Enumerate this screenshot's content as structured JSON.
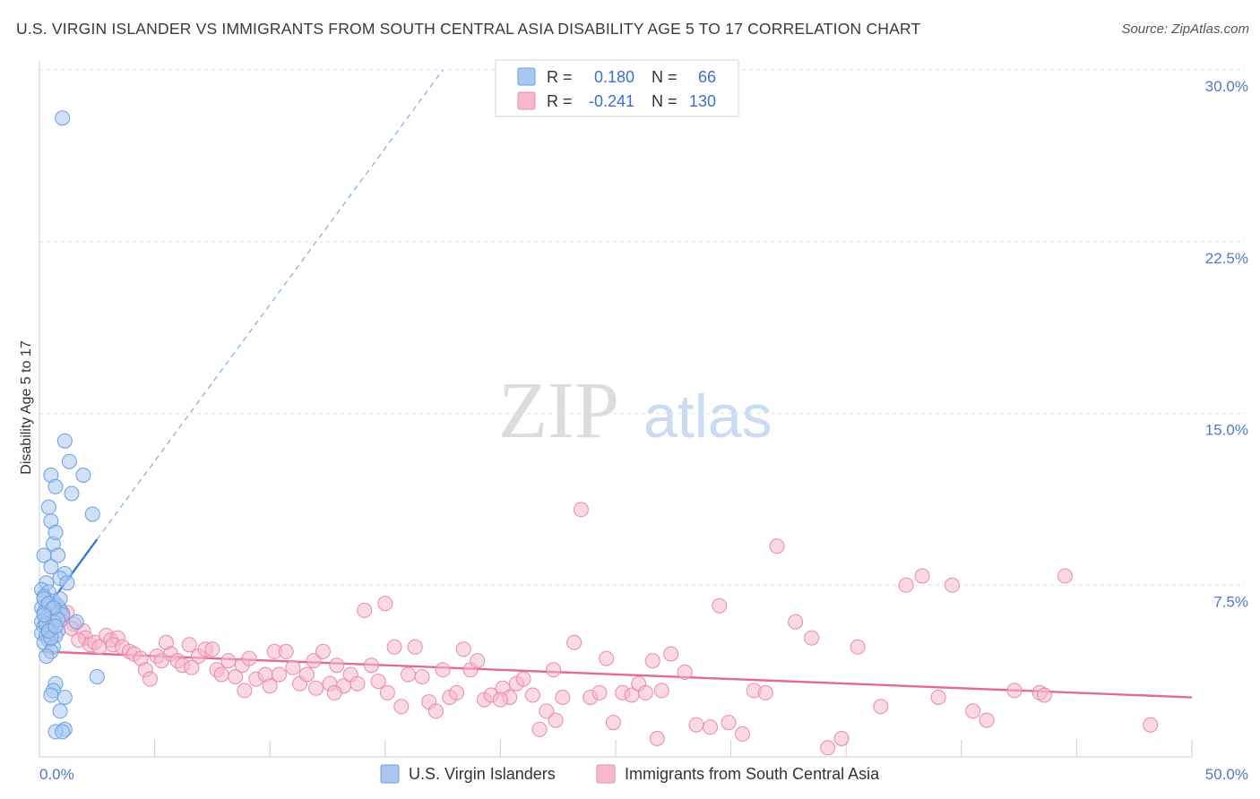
{
  "title": "U.S. VIRGIN ISLANDER VS IMMIGRANTS FROM SOUTH CENTRAL ASIA DISABILITY AGE 5 TO 17 CORRELATION CHART",
  "source": "Source: ZipAtlas.com",
  "watermark": {
    "zip": "ZIP",
    "atlas": "atlas"
  },
  "legend_top": {
    "rows": [
      {
        "r_label": "R =",
        "r_value": "0.180",
        "n_label": "N =",
        "n_value": "66",
        "color": "#a9c8f0",
        "border": "#6a9ee0"
      },
      {
        "r_label": "R =",
        "r_value": "-0.241",
        "n_label": "N =",
        "n_value": "130",
        "color": "#f6b9cc",
        "border": "#e98aa9"
      }
    ]
  },
  "legend_bottom": {
    "items": [
      {
        "label": "U.S. Virgin Islanders",
        "color": "#a9c8f0",
        "border": "#6a9ee0"
      },
      {
        "label": "Immigrants from South Central Asia",
        "color": "#f6b9cc",
        "border": "#e98aa9"
      }
    ]
  },
  "chart_data": {
    "type": "scatter",
    "ylabel": "Disability Age 5 to 17",
    "xlim": [
      0,
      50
    ],
    "ylim": [
      0,
      30
    ],
    "x_tick_labels": [
      "0.0%",
      "50.0%"
    ],
    "y_ticks": [
      7.5,
      15.0,
      22.5,
      30.0
    ],
    "y_tick_labels": [
      "7.5%",
      "15.0%",
      "22.5%",
      "30.0%"
    ],
    "grid": true,
    "series": [
      {
        "name": "U.S. Virgin Islanders",
        "color": "#a9c8f0",
        "stroke": "#6a9ee0",
        "line_color": "#2b6fd6",
        "trend": {
          "x0": 0.1,
          "y0": 6.2,
          "x1": 2.5,
          "y1": 9.5,
          "dash_x1": 17.5,
          "dash_y1": 30.0
        },
        "points": [
          [
            1.0,
            27.9
          ],
          [
            1.1,
            13.8
          ],
          [
            1.3,
            12.9
          ],
          [
            0.5,
            12.3
          ],
          [
            1.9,
            12.3
          ],
          [
            0.7,
            11.8
          ],
          [
            1.4,
            11.5
          ],
          [
            0.4,
            10.9
          ],
          [
            2.3,
            10.6
          ],
          [
            0.5,
            10.3
          ],
          [
            0.6,
            9.3
          ],
          [
            0.7,
            9.8
          ],
          [
            0.2,
            8.8
          ],
          [
            0.8,
            8.8
          ],
          [
            0.5,
            8.3
          ],
          [
            1.1,
            8.0
          ],
          [
            0.9,
            7.8
          ],
          [
            0.3,
            7.6
          ],
          [
            1.2,
            7.6
          ],
          [
            0.1,
            7.3
          ],
          [
            0.4,
            7.2
          ],
          [
            0.2,
            7.0
          ],
          [
            0.6,
            6.8
          ],
          [
            0.3,
            6.6
          ],
          [
            0.8,
            6.6
          ],
          [
            0.1,
            6.5
          ],
          [
            0.5,
            6.4
          ],
          [
            0.9,
            6.4
          ],
          [
            0.2,
            6.3
          ],
          [
            0.7,
            6.2
          ],
          [
            1.0,
            6.2
          ],
          [
            0.3,
            6.1
          ],
          [
            0.4,
            6.0
          ],
          [
            0.1,
            5.9
          ],
          [
            0.6,
            5.9
          ],
          [
            1.6,
            5.9
          ],
          [
            0.2,
            5.7
          ],
          [
            0.5,
            5.6
          ],
          [
            0.8,
            5.5
          ],
          [
            0.1,
            5.4
          ],
          [
            0.3,
            5.3
          ],
          [
            0.7,
            5.3
          ],
          [
            0.4,
            5.1
          ],
          [
            0.2,
            5.0
          ],
          [
            0.6,
            4.8
          ],
          [
            0.5,
            4.6
          ],
          [
            0.3,
            4.4
          ],
          [
            2.5,
            3.5
          ],
          [
            0.7,
            3.2
          ],
          [
            0.6,
            2.9
          ],
          [
            0.5,
            2.7
          ],
          [
            1.1,
            2.6
          ],
          [
            0.9,
            2.0
          ],
          [
            1.1,
            1.2
          ],
          [
            0.7,
            1.1
          ],
          [
            1.0,
            1.1
          ],
          [
            0.2,
            6.9
          ],
          [
            0.4,
            6.7
          ],
          [
            0.9,
            6.9
          ],
          [
            0.3,
            5.8
          ],
          [
            0.5,
            5.2
          ],
          [
            0.8,
            6.0
          ],
          [
            0.6,
            6.5
          ],
          [
            0.2,
            6.2
          ],
          [
            0.4,
            5.5
          ],
          [
            0.7,
            5.7
          ]
        ]
      },
      {
        "name": "Immigrants from South Central Asia",
        "color": "#f6b9cc",
        "stroke": "#e98aa9",
        "line_color": "#e5689a",
        "trend": {
          "x0": 0.1,
          "y0": 4.6,
          "x1": 50.0,
          "y1": 2.6
        },
        "points": [
          [
            0.7,
            6.6
          ],
          [
            1.0,
            6.3
          ],
          [
            1.2,
            6.3
          ],
          [
            0.9,
            6.0
          ],
          [
            1.5,
            5.8
          ],
          [
            1.4,
            5.6
          ],
          [
            1.9,
            5.5
          ],
          [
            2.0,
            5.2
          ],
          [
            1.7,
            5.1
          ],
          [
            2.2,
            4.9
          ],
          [
            2.4,
            5.0
          ],
          [
            2.6,
            4.8
          ],
          [
            2.9,
            5.3
          ],
          [
            3.1,
            5.1
          ],
          [
            3.4,
            5.2
          ],
          [
            3.2,
            4.9
          ],
          [
            3.6,
            4.8
          ],
          [
            3.9,
            4.6
          ],
          [
            4.1,
            4.5
          ],
          [
            4.4,
            4.3
          ],
          [
            4.6,
            3.8
          ],
          [
            4.8,
            3.4
          ],
          [
            5.1,
            4.4
          ],
          [
            5.5,
            5.0
          ],
          [
            5.7,
            4.5
          ],
          [
            6.0,
            4.2
          ],
          [
            6.2,
            4.0
          ],
          [
            6.5,
            4.9
          ],
          [
            6.9,
            4.4
          ],
          [
            7.2,
            4.7
          ],
          [
            7.5,
            4.7
          ],
          [
            7.7,
            3.8
          ],
          [
            7.9,
            3.6
          ],
          [
            8.2,
            4.2
          ],
          [
            8.5,
            3.5
          ],
          [
            8.8,
            4.0
          ],
          [
            9.1,
            4.3
          ],
          [
            9.4,
            3.4
          ],
          [
            9.8,
            3.6
          ],
          [
            10.2,
            4.6
          ],
          [
            10.4,
            3.6
          ],
          [
            10.7,
            4.6
          ],
          [
            11.0,
            3.9
          ],
          [
            11.3,
            3.2
          ],
          [
            11.6,
            3.6
          ],
          [
            11.9,
            4.2
          ],
          [
            12.3,
            4.6
          ],
          [
            12.6,
            3.2
          ],
          [
            12.9,
            4.0
          ],
          [
            13.2,
            3.1
          ],
          [
            13.5,
            3.6
          ],
          [
            13.8,
            3.2
          ],
          [
            14.1,
            6.4
          ],
          [
            14.4,
            4.0
          ],
          [
            14.7,
            3.3
          ],
          [
            15.1,
            2.8
          ],
          [
            15.4,
            4.8
          ],
          [
            15.7,
            2.2
          ],
          [
            16.0,
            3.6
          ],
          [
            16.3,
            4.8
          ],
          [
            16.6,
            3.5
          ],
          [
            16.9,
            2.4
          ],
          [
            17.2,
            2.0
          ],
          [
            17.5,
            3.8
          ],
          [
            17.8,
            2.6
          ],
          [
            18.1,
            2.8
          ],
          [
            18.4,
            4.7
          ],
          [
            18.7,
            3.8
          ],
          [
            19.0,
            4.2
          ],
          [
            19.3,
            2.5
          ],
          [
            19.6,
            2.7
          ],
          [
            20.1,
            3.0
          ],
          [
            20.4,
            2.6
          ],
          [
            20.7,
            3.2
          ],
          [
            21.0,
            3.4
          ],
          [
            21.4,
            2.7
          ],
          [
            21.7,
            1.2
          ],
          [
            22.0,
            2.0
          ],
          [
            22.3,
            3.8
          ],
          [
            22.7,
            2.6
          ],
          [
            23.2,
            5.0
          ],
          [
            23.5,
            10.8
          ],
          [
            23.9,
            2.6
          ],
          [
            24.3,
            2.8
          ],
          [
            24.6,
            4.3
          ],
          [
            24.9,
            1.5
          ],
          [
            25.3,
            2.8
          ],
          [
            25.7,
            2.7
          ],
          [
            26.0,
            3.2
          ],
          [
            26.3,
            2.8
          ],
          [
            26.6,
            4.2
          ],
          [
            27.0,
            2.9
          ],
          [
            27.4,
            4.5
          ],
          [
            28.0,
            3.7
          ],
          [
            28.5,
            1.4
          ],
          [
            29.1,
            1.3
          ],
          [
            29.5,
            6.6
          ],
          [
            29.9,
            1.5
          ],
          [
            30.5,
            1.0
          ],
          [
            31.0,
            2.9
          ],
          [
            31.5,
            2.8
          ],
          [
            32.0,
            9.2
          ],
          [
            32.8,
            5.9
          ],
          [
            33.5,
            5.2
          ],
          [
            34.2,
            0.4
          ],
          [
            34.8,
            0.8
          ],
          [
            35.5,
            4.8
          ],
          [
            36.5,
            2.2
          ],
          [
            37.6,
            7.5
          ],
          [
            38.3,
            7.9
          ],
          [
            39.0,
            2.6
          ],
          [
            39.6,
            7.5
          ],
          [
            40.5,
            2.0
          ],
          [
            41.1,
            1.6
          ],
          [
            42.3,
            2.9
          ],
          [
            43.4,
            2.8
          ],
          [
            43.6,
            2.7
          ],
          [
            44.5,
            7.9
          ],
          [
            48.2,
            1.4
          ],
          [
            6.6,
            3.9
          ],
          [
            10.0,
            3.1
          ],
          [
            12.0,
            3.0
          ],
          [
            26.8,
            0.8
          ],
          [
            15.0,
            6.7
          ],
          [
            5.3,
            4.2
          ],
          [
            8.9,
            2.9
          ],
          [
            12.8,
            2.8
          ],
          [
            20.0,
            2.5
          ],
          [
            22.4,
            1.6
          ]
        ]
      }
    ]
  }
}
